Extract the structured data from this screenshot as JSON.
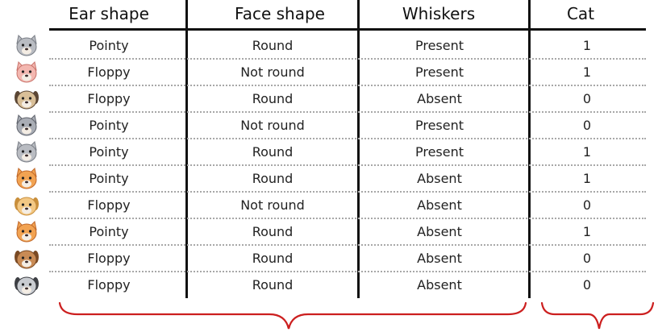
{
  "table": {
    "headers": [
      "Ear shape",
      "Face shape",
      "Whiskers",
      "Cat"
    ],
    "rows": [
      {
        "animal": "gray-cat-icon",
        "ear": "Pointy",
        "face": "Round",
        "whiskers": "Present",
        "cat": "1"
      },
      {
        "animal": "pink-cat-icon",
        "ear": "Floppy",
        "face": "Not round",
        "whiskers": "Present",
        "cat": "1"
      },
      {
        "animal": "pug-dog-icon",
        "ear": "Floppy",
        "face": "Round",
        "whiskers": "Absent",
        "cat": "0"
      },
      {
        "animal": "husky-dog-icon",
        "ear": "Pointy",
        "face": "Not round",
        "whiskers": "Present",
        "cat": "0"
      },
      {
        "animal": "gray-cat-icon",
        "ear": "Pointy",
        "face": "Round",
        "whiskers": "Present",
        "cat": "1"
      },
      {
        "animal": "orange-cat-icon",
        "ear": "Pointy",
        "face": "Round",
        "whiskers": "Absent",
        "cat": "1"
      },
      {
        "animal": "golden-dog-icon",
        "ear": "Floppy",
        "face": "Not round",
        "whiskers": "Absent",
        "cat": "0"
      },
      {
        "animal": "orange-cat-icon",
        "ear": "Pointy",
        "face": "Round",
        "whiskers": "Absent",
        "cat": "1"
      },
      {
        "animal": "brown-dog-icon",
        "ear": "Floppy",
        "face": "Round",
        "whiskers": "Absent",
        "cat": "0"
      },
      {
        "animal": "gray-dog-icon",
        "ear": "Floppy",
        "face": "Round",
        "whiskers": "Absent",
        "cat": "0"
      }
    ]
  },
  "colors": {
    "rule": "#111111",
    "dots": "#a8a8a8",
    "brace": "#cc1f1f"
  }
}
